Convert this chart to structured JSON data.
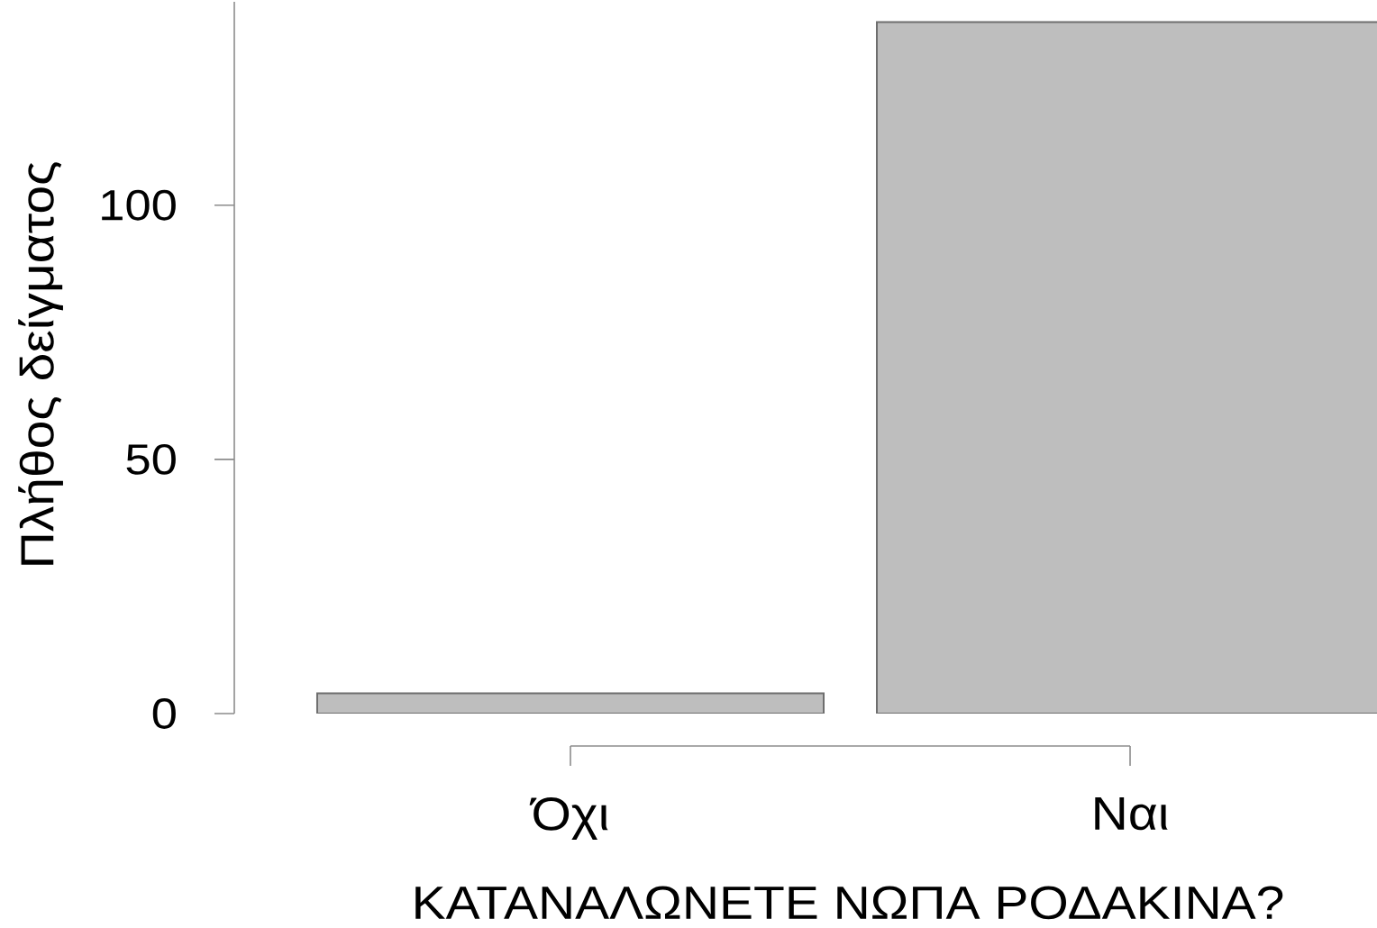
{
  "chart_data": {
    "type": "bar",
    "xlabel": "ΚΑΤΑΝΑΛΩΝΕΤΕ ΝΩΠΑ ΡΟΔΑΚΙΝΑ?",
    "ylabel": "Πλήθος δείγματος",
    "categories": [
      "Όχι",
      "Ναι"
    ],
    "values": [
      4,
      136
    ],
    "color": "#bebebe",
    "ylim": [
      0,
      140
    ],
    "yticks": [
      0,
      50,
      100
    ]
  }
}
